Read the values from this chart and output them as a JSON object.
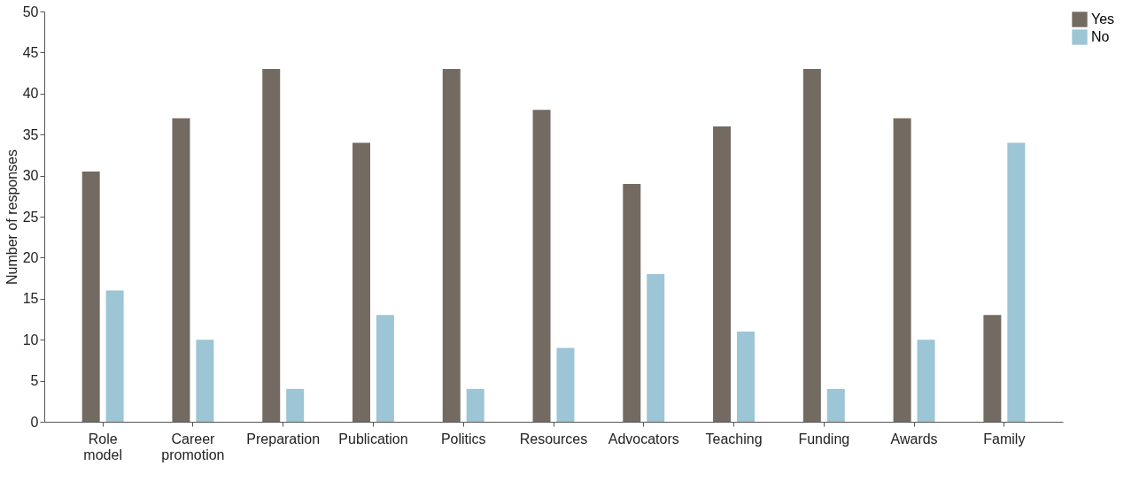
{
  "chart_data": {
    "type": "bar",
    "ylabel": "Number of responses",
    "categories": [
      "Role model",
      "Career promotion",
      "Preparation",
      "Publication",
      "Politics",
      "Resources",
      "Advocators",
      "Teaching",
      "Funding",
      "Awards",
      "Family"
    ],
    "series": [
      {
        "name": "Yes",
        "color": "#736a62",
        "values": [
          30.5,
          37,
          43,
          34,
          43,
          38,
          29,
          36,
          43,
          37,
          13
        ]
      },
      {
        "name": "No",
        "color": "#9cc5d5",
        "values": [
          16,
          10,
          4,
          13,
          4,
          9,
          18,
          11,
          4,
          10,
          34
        ]
      }
    ],
    "ylim": [
      0,
      50
    ],
    "yticks": [
      0,
      5,
      10,
      15,
      20,
      25,
      30,
      35,
      40,
      45,
      50
    ],
    "grid": false,
    "legend": "top right"
  }
}
